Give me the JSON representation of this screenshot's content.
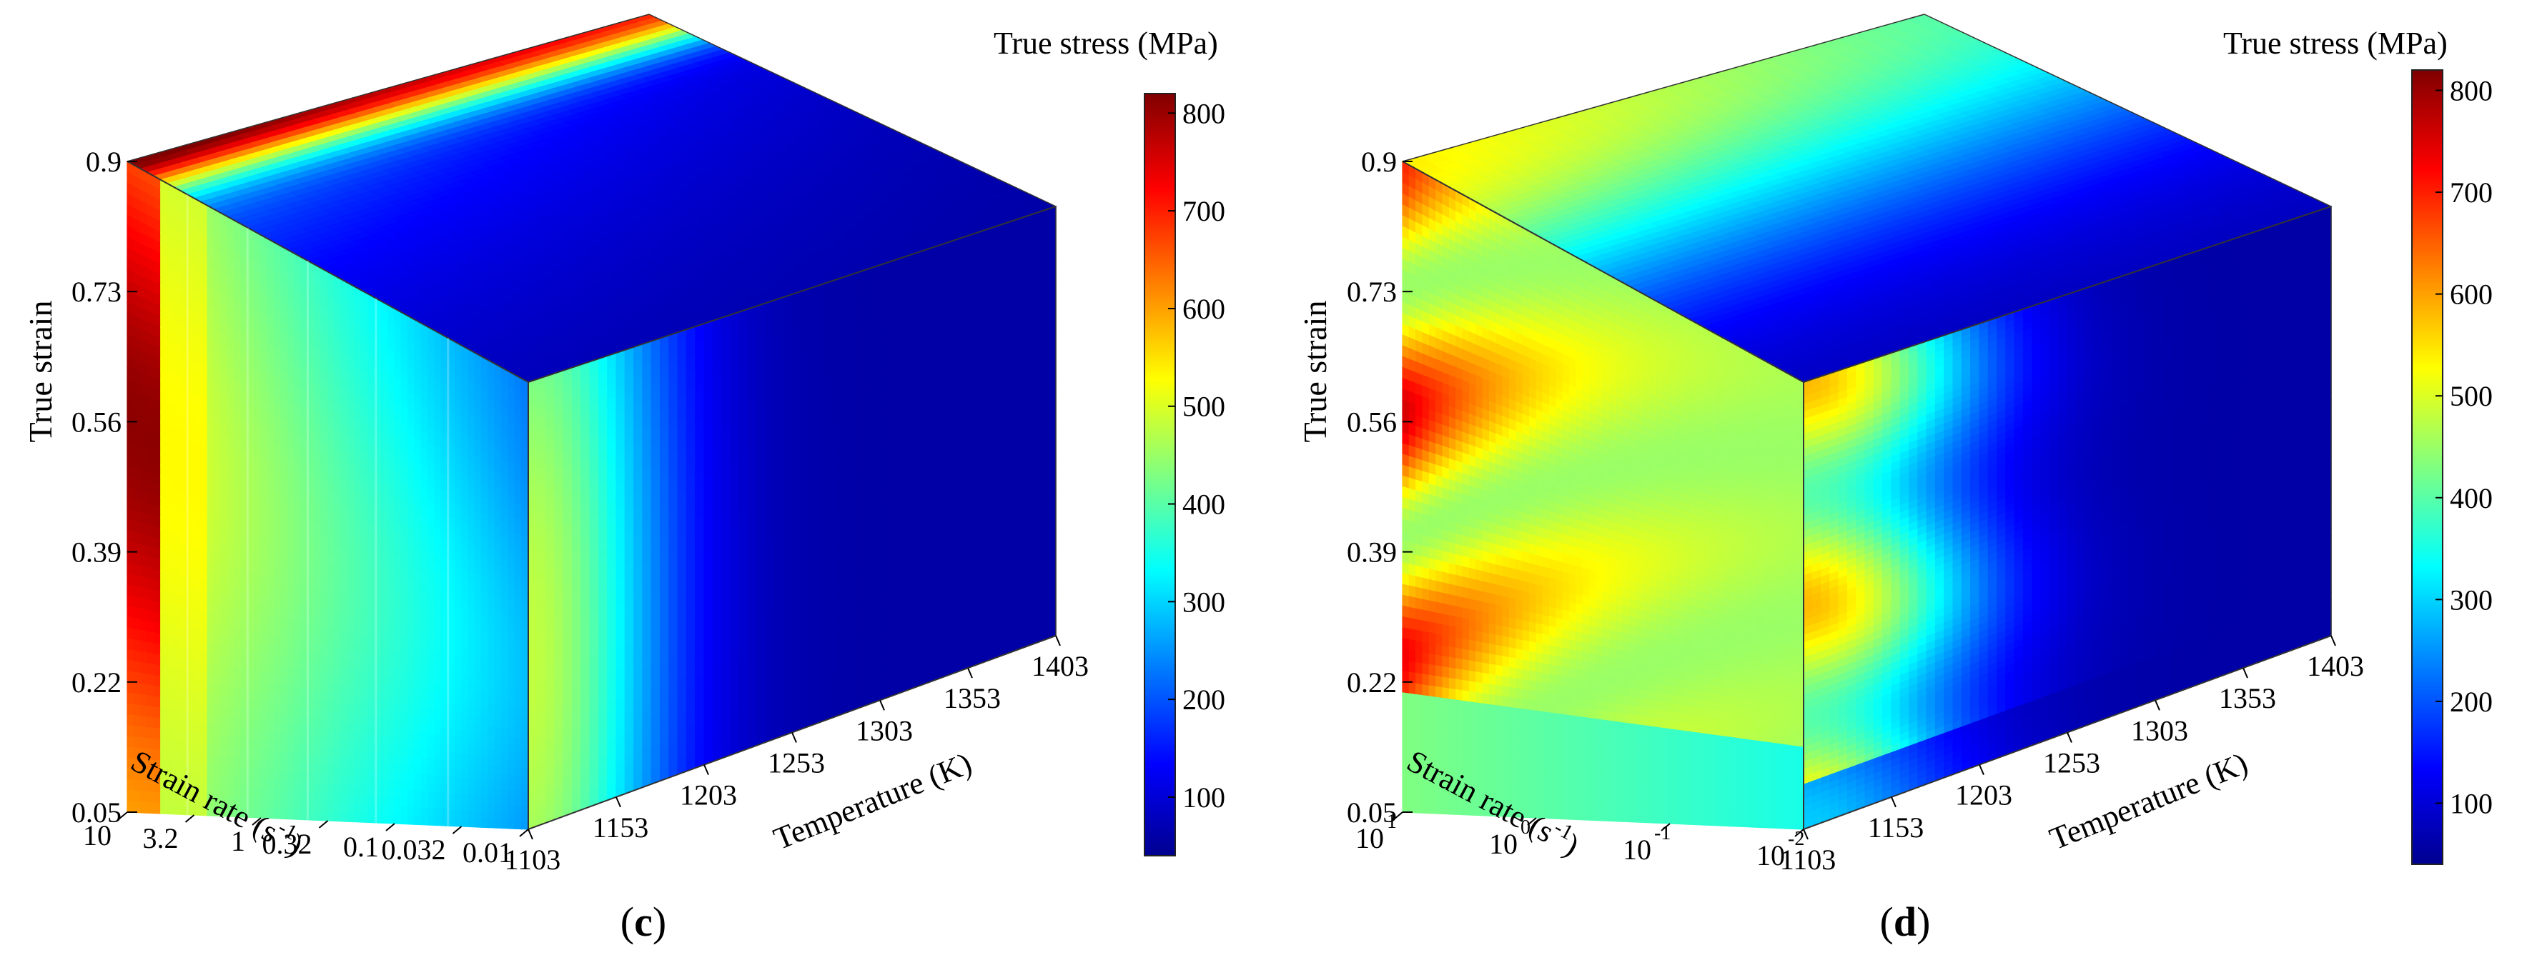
{
  "figure": {
    "panels": [
      "(c)",
      "(d)"
    ]
  },
  "colors": {
    "jet": [
      "#00008f",
      "#0000ff",
      "#0080ff",
      "#00ffff",
      "#80ff80",
      "#ffff00",
      "#ff8000",
      "#ff0000",
      "#800000"
    ],
    "edge": "#333333"
  },
  "chart_data": [
    {
      "type": "heatmap",
      "subtype": "3d-cube",
      "label": "(c)",
      "colorbar": {
        "title": "True stress (MPa)",
        "ticks": [
          100,
          200,
          300,
          400,
          500,
          600,
          700,
          800
        ],
        "range": [
          40,
          820
        ]
      },
      "axes": {
        "strain": {
          "label": "True strain",
          "ticks": [
            "0.05",
            "0.22",
            "0.39",
            "0.56",
            "0.73",
            "0.9"
          ],
          "values": [
            0.05,
            0.22,
            0.39,
            0.56,
            0.73,
            0.9
          ]
        },
        "strain_rate": {
          "label": "Strain rate (s",
          "label_exp": "-1",
          "label_end": ")",
          "ticks": [
            "10",
            "3.2",
            "1",
            "0.32",
            "0.1",
            "0.032",
            "0.01"
          ],
          "values": [
            10,
            3.2,
            1,
            0.32,
            0.1,
            0.032,
            0.01
          ]
        },
        "temperature": {
          "label": "Temperature (K)",
          "ticks": [
            "1103",
            "1153",
            "1203",
            "1253",
            "1303",
            "1353",
            "1403"
          ],
          "values": [
            1103,
            1153,
            1203,
            1253,
            1303,
            1353,
            1403
          ]
        }
      }
    },
    {
      "type": "heatmap",
      "subtype": "3d-cube",
      "label": "(d)",
      "colorbar": {
        "title": "True stress (MPa)",
        "ticks": [
          100,
          200,
          300,
          400,
          500,
          600,
          700,
          800
        ],
        "range": [
          40,
          820
        ]
      },
      "axes": {
        "strain": {
          "label": "True strain",
          "ticks": [
            "0.05",
            "0.22",
            "0.39",
            "0.56",
            "0.73",
            "0.9"
          ],
          "values": [
            0.05,
            0.22,
            0.39,
            0.56,
            0.73,
            0.9
          ]
        },
        "strain_rate": {
          "label": "Strain rate (s",
          "label_exp": "-1",
          "label_end": ")",
          "ticks": [
            "1",
            "0",
            "-1",
            "-2"
          ],
          "tick_base": "10",
          "values": [
            10,
            1,
            0.1,
            0.01
          ]
        },
        "temperature": {
          "label": "Temperature (K)",
          "ticks": [
            "1103",
            "1153",
            "1203",
            "1253",
            "1303",
            "1353",
            "1403"
          ],
          "values": [
            1103,
            1153,
            1203,
            1253,
            1303,
            1353,
            1403
          ]
        }
      }
    }
  ]
}
